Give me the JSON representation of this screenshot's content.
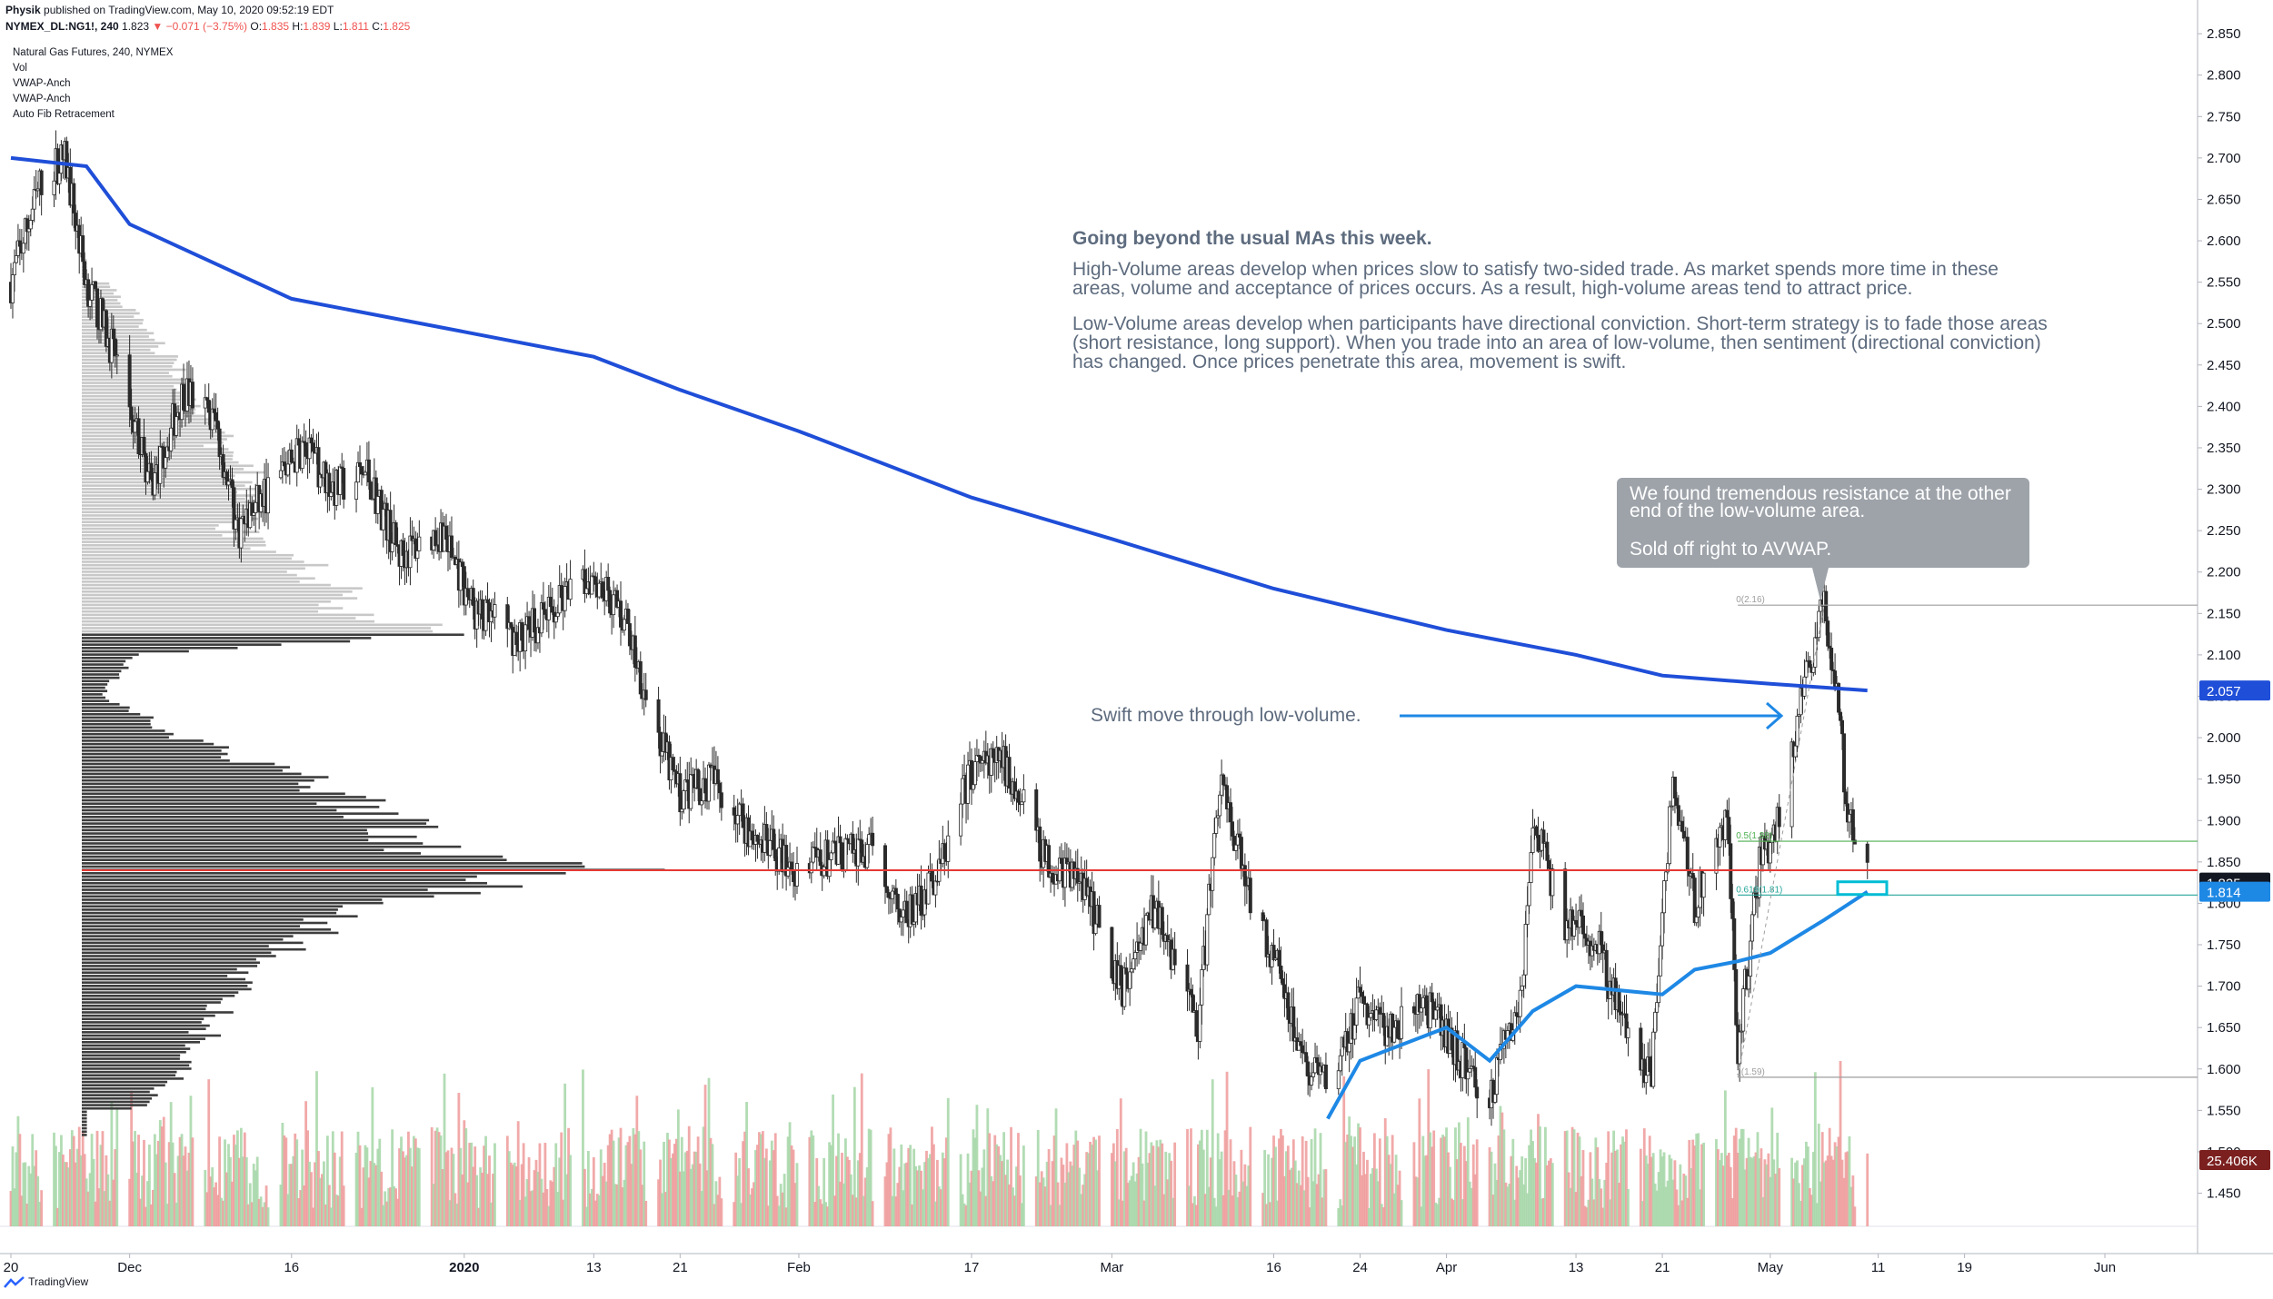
{
  "header": {
    "author": "Physik",
    "published": "published on TradingView.com, May 10, 2020 09:52:19 EDT",
    "symbol_line": "NYMEX_DL:NG1!, 240",
    "last": "1.823",
    "change": "▼ −0.071 (−3.75%)",
    "o_label": "O:",
    "o": "1.835",
    "h_label": "H:",
    "h": "1.839",
    "l_label": "L:",
    "l": "1.811",
    "c_label": "C:",
    "c": "1.825"
  },
  "legend": [
    "Natural Gas Futures, 240, NYMEX",
    "Vol",
    "VWAP-Anch",
    "VWAP-Anch",
    "Auto Fib Retracement"
  ],
  "annotations": {
    "title": "Going beyond the usual MAs this week.",
    "p1": "High-Volume areas develop when prices slow to satisfy two-sided trade. As market spends more time in these areas, volume and acceptance of prices occurs. As a result, high-volume areas tend to attract price.",
    "p2": "Low-Volume areas develop when participants have directional conviction. Short-term strategy is to fade those areas (short resistance, long support). When you trade into an area of low-volume, then sentiment (directional conviction) has changed. Once prices penetrate this area, movement is swift.",
    "callout_1": "We found tremendous resistance at the other end of the low-volume area.",
    "callout_2": "Sold off right to AVWAP.",
    "swift": "Swift move through low-volume."
  },
  "footer": {
    "brand": "TradingView"
  },
  "colors": {
    "up": "#2b2b2b",
    "down": "#2b2b2b",
    "vwap_long": "#1f4ed8",
    "vwap_short": "#1e88e5",
    "poc_line": "#e53935",
    "vol_up": "#a5d6a7",
    "vol_down": "#ef9a9a",
    "profile_dark": "#3d3d3d",
    "profile_light": "#c8c8c8"
  },
  "chart_data": {
    "type": "candlestick",
    "symbol": "NYMEX_DL:NG1!",
    "timeframe": "240",
    "y_axis": {
      "range": [
        1.41,
        2.86
      ],
      "ticks": [
        "2.850",
        "2.800",
        "2.750",
        "2.700",
        "2.650",
        "2.600",
        "2.550",
        "2.500",
        "2.450",
        "2.400",
        "2.350",
        "2.300",
        "2.250",
        "2.200",
        "2.150",
        "2.100",
        "2.050",
        "2.000",
        "1.950",
        "1.900",
        "1.850",
        "1.800",
        "1.750",
        "1.700",
        "1.650",
        "1.600",
        "1.550",
        "1.500",
        "1.450"
      ]
    },
    "x_axis": {
      "ticks": [
        {
          "label": "20",
          "date": "2019-11-20"
        },
        {
          "label": "Dec",
          "date": "2019-12-01"
        },
        {
          "label": "16",
          "date": "2019-12-16"
        },
        {
          "label": "2020",
          "date": "2020-01-01"
        },
        {
          "label": "13",
          "date": "2020-01-13"
        },
        {
          "label": "21",
          "date": "2020-01-21"
        },
        {
          "label": "Feb",
          "date": "2020-02-01"
        },
        {
          "label": "17",
          "date": "2020-02-17"
        },
        {
          "label": "Mar",
          "date": "2020-03-01"
        },
        {
          "label": "16",
          "date": "2020-03-16"
        },
        {
          "label": "24",
          "date": "2020-03-24"
        },
        {
          "label": "Apr",
          "date": "2020-04-01"
        },
        {
          "label": "13",
          "date": "2020-04-13"
        },
        {
          "label": "21",
          "date": "2020-04-21"
        },
        {
          "label": "May",
          "date": "2020-05-01"
        },
        {
          "label": "11",
          "date": "2020-05-11"
        },
        {
          "label": "19",
          "date": "2020-05-19"
        },
        {
          "label": "Jun",
          "date": "2020-06-01"
        }
      ]
    },
    "price_path": [
      {
        "date": "2019-11-20",
        "close": 2.55
      },
      {
        "date": "2019-11-23",
        "close": 2.68
      },
      {
        "date": "2019-11-25",
        "close": 2.7
      },
      {
        "date": "2019-11-27",
        "close": 2.55
      },
      {
        "date": "2019-11-30",
        "close": 2.45
      },
      {
        "date": "2019-12-03",
        "close": 2.3
      },
      {
        "date": "2019-12-06",
        "close": 2.42
      },
      {
        "date": "2019-12-09",
        "close": 2.38
      },
      {
        "date": "2019-12-11",
        "close": 2.25
      },
      {
        "date": "2019-12-14",
        "close": 2.3
      },
      {
        "date": "2019-12-17",
        "close": 2.35
      },
      {
        "date": "2019-12-20",
        "close": 2.3
      },
      {
        "date": "2019-12-23",
        "close": 2.32
      },
      {
        "date": "2019-12-26",
        "close": 2.22
      },
      {
        "date": "2019-12-30",
        "close": 2.25
      },
      {
        "date": "2020-01-02",
        "close": 2.15
      },
      {
        "date": "2020-01-06",
        "close": 2.12
      },
      {
        "date": "2020-01-09",
        "close": 2.15
      },
      {
        "date": "2020-01-13",
        "close": 2.2
      },
      {
        "date": "2020-01-16",
        "close": 2.14
      },
      {
        "date": "2020-01-19",
        "close": 2.0
      },
      {
        "date": "2020-01-21",
        "close": 1.93
      },
      {
        "date": "2020-01-24",
        "close": 1.95
      },
      {
        "date": "2020-01-28",
        "close": 1.88
      },
      {
        "date": "2020-02-01",
        "close": 1.84
      },
      {
        "date": "2020-02-05",
        "close": 1.86
      },
      {
        "date": "2020-02-08",
        "close": 1.86
      },
      {
        "date": "2020-02-11",
        "close": 1.78
      },
      {
        "date": "2020-02-14",
        "close": 1.84
      },
      {
        "date": "2020-02-17",
        "close": 1.96
      },
      {
        "date": "2020-02-20",
        "close": 1.97
      },
      {
        "date": "2020-02-24",
        "close": 1.85
      },
      {
        "date": "2020-02-27",
        "close": 1.83
      },
      {
        "date": "2020-03-02",
        "close": 1.7
      },
      {
        "date": "2020-03-05",
        "close": 1.8
      },
      {
        "date": "2020-03-09",
        "close": 1.65
      },
      {
        "date": "2020-03-11",
        "close": 1.95
      },
      {
        "date": "2020-03-14",
        "close": 1.8
      },
      {
        "date": "2020-03-17",
        "close": 1.7
      },
      {
        "date": "2020-03-19",
        "close": 1.6
      },
      {
        "date": "2020-03-21",
        "close": 1.58
      },
      {
        "date": "2020-03-24",
        "close": 1.68
      },
      {
        "date": "2020-03-27",
        "close": 1.64
      },
      {
        "date": "2020-03-30",
        "close": 1.68
      },
      {
        "date": "2020-04-02",
        "close": 1.62
      },
      {
        "date": "2020-04-05",
        "close": 1.56
      },
      {
        "date": "2020-04-08",
        "close": 1.7
      },
      {
        "date": "2020-04-09",
        "close": 1.9
      },
      {
        "date": "2020-04-12",
        "close": 1.78
      },
      {
        "date": "2020-04-15",
        "close": 1.75
      },
      {
        "date": "2020-04-18",
        "close": 1.62
      },
      {
        "date": "2020-04-20",
        "close": 1.6
      },
      {
        "date": "2020-04-22",
        "close": 1.95
      },
      {
        "date": "2020-04-24",
        "close": 1.8
      },
      {
        "date": "2020-04-27",
        "close": 1.9
      },
      {
        "date": "2020-04-28",
        "close": 1.62
      },
      {
        "date": "2020-04-30",
        "close": 1.85
      },
      {
        "date": "2020-05-02",
        "close": 1.9
      },
      {
        "date": "2020-05-04",
        "close": 2.05
      },
      {
        "date": "2020-05-06",
        "close": 2.16
      },
      {
        "date": "2020-05-07",
        "close": 2.08
      },
      {
        "date": "2020-05-08",
        "close": 1.93
      },
      {
        "date": "2020-05-09",
        "close": 1.88
      },
      {
        "date": "2020-05-10",
        "close": 1.825
      }
    ],
    "vwap_anchored_long": [
      {
        "date": "2019-11-20",
        "value": 2.7
      },
      {
        "date": "2019-11-27",
        "value": 2.69
      },
      {
        "date": "2019-12-01",
        "value": 2.62
      },
      {
        "date": "2019-12-16",
        "value": 2.53
      },
      {
        "date": "2020-01-01",
        "value": 2.49
      },
      {
        "date": "2020-01-13",
        "value": 2.46
      },
      {
        "date": "2020-01-21",
        "value": 2.42
      },
      {
        "date": "2020-02-01",
        "value": 2.37
      },
      {
        "date": "2020-02-17",
        "value": 2.29
      },
      {
        "date": "2020-03-01",
        "value": 2.24
      },
      {
        "date": "2020-03-16",
        "value": 2.18
      },
      {
        "date": "2020-04-01",
        "value": 2.13
      },
      {
        "date": "2020-04-13",
        "value": 2.1
      },
      {
        "date": "2020-04-21",
        "value": 2.075
      },
      {
        "date": "2020-05-01",
        "value": 2.065
      },
      {
        "date": "2020-05-10",
        "value": 2.057
      }
    ],
    "vwap_anchored_short": [
      {
        "date": "2020-03-21",
        "value": 1.54
      },
      {
        "date": "2020-03-24",
        "value": 1.61
      },
      {
        "date": "2020-04-01",
        "value": 1.65
      },
      {
        "date": "2020-04-05",
        "value": 1.61
      },
      {
        "date": "2020-04-09",
        "value": 1.67
      },
      {
        "date": "2020-04-13",
        "value": 1.7
      },
      {
        "date": "2020-04-21",
        "value": 1.69
      },
      {
        "date": "2020-04-24",
        "value": 1.72
      },
      {
        "date": "2020-04-28",
        "value": 1.73
      },
      {
        "date": "2020-05-01",
        "value": 1.74
      },
      {
        "date": "2020-05-06",
        "value": 1.78
      },
      {
        "date": "2020-05-10",
        "value": 1.814
      }
    ],
    "poc_price": 1.84,
    "fib_levels": [
      {
        "label": "0(2.16)",
        "price": 2.16
      },
      {
        "label": "0.5(1.88)",
        "price": 1.875
      },
      {
        "label": "0.618(1.81)",
        "price": 1.81
      },
      {
        "label": "1(1.59)",
        "price": 1.59
      }
    ],
    "price_labels": [
      {
        "text": "2.057",
        "price": 2.057,
        "color": "#1f4ed8"
      },
      {
        "text": "1.825",
        "price": 1.825,
        "color": "#131722"
      },
      {
        "text": "1.814",
        "price": 1.814,
        "color": "#1e88e5"
      },
      {
        "text": "25.406K",
        "price": 1.49,
        "color": "#7b1f1f"
      }
    ],
    "volume_profile": {
      "levels": [
        {
          "price": 2.55,
          "size": 0.05
        },
        {
          "price": 2.5,
          "size": 0.12
        },
        {
          "price": 2.45,
          "size": 0.18
        },
        {
          "price": 2.4,
          "size": 0.22
        },
        {
          "price": 2.35,
          "size": 0.28
        },
        {
          "price": 2.3,
          "size": 0.35
        },
        {
          "price": 2.25,
          "size": 0.3
        },
        {
          "price": 2.2,
          "size": 0.45
        },
        {
          "price": 2.15,
          "size": 0.55
        },
        {
          "price": 2.125,
          "size": 0.75
        },
        {
          "price": 2.1,
          "size": 0.1
        },
        {
          "price": 2.05,
          "size": 0.04
        },
        {
          "price": 2.0,
          "size": 0.2
        },
        {
          "price": 1.95,
          "size": 0.45
        },
        {
          "price": 1.9,
          "size": 0.6
        },
        {
          "price": 1.86,
          "size": 0.7
        },
        {
          "price": 1.84,
          "size": 1.0
        },
        {
          "price": 1.8,
          "size": 0.55
        },
        {
          "price": 1.75,
          "size": 0.4
        },
        {
          "price": 1.7,
          "size": 0.3
        },
        {
          "price": 1.65,
          "size": 0.25
        },
        {
          "price": 1.6,
          "size": 0.2
        },
        {
          "price": 1.55,
          "size": 0.1
        }
      ],
      "split_price": 2.125
    }
  }
}
